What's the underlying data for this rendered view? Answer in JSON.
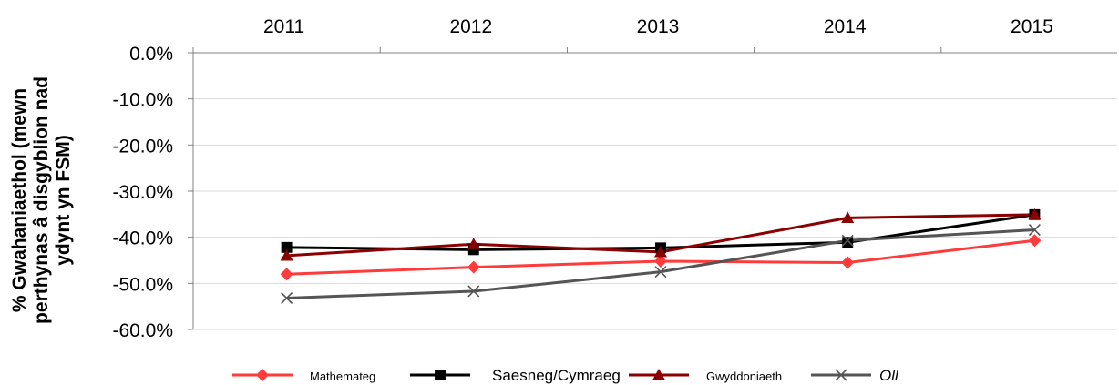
{
  "chart_data": {
    "type": "line",
    "x": [
      "2011",
      "2012",
      "2013",
      "2014",
      "2015"
    ],
    "ylabel": [
      "% Gwahaniaethol (mewn",
      "perthynas â disgyblion nad",
      "ydynt yn FSM)"
    ],
    "ylim": [
      -60,
      0
    ],
    "ytick_step": 10,
    "yticks": [
      "0.0%",
      "-10.0%",
      "-20.0%",
      "-30.0%",
      "-40.0%",
      "-50.0%",
      "-60.0%"
    ],
    "x_axis_position": "top",
    "grid": true,
    "legend_position": "bottom",
    "series": [
      {
        "name": "Mathemateg",
        "color": "#ff3b3b",
        "marker": "diamond",
        "values": [
          -48.0,
          -46.5,
          -45.2,
          -45.5,
          -40.7
        ]
      },
      {
        "name": "Saesneg/Cymraeg",
        "color": "#000000",
        "marker": "square",
        "values": [
          -42.2,
          -42.7,
          -42.3,
          -41.1,
          -35.1
        ]
      },
      {
        "name": "Gwyddoniaeth",
        "color": "#8b0000",
        "marker": "triangle",
        "values": [
          -44.0,
          -41.5,
          -43.2,
          -35.8,
          -35.1
        ]
      },
      {
        "name": "Oll",
        "color": "#555555",
        "marker": "x",
        "values": [
          -53.2,
          -51.7,
          -47.5,
          -40.7,
          -38.4
        ]
      }
    ]
  }
}
